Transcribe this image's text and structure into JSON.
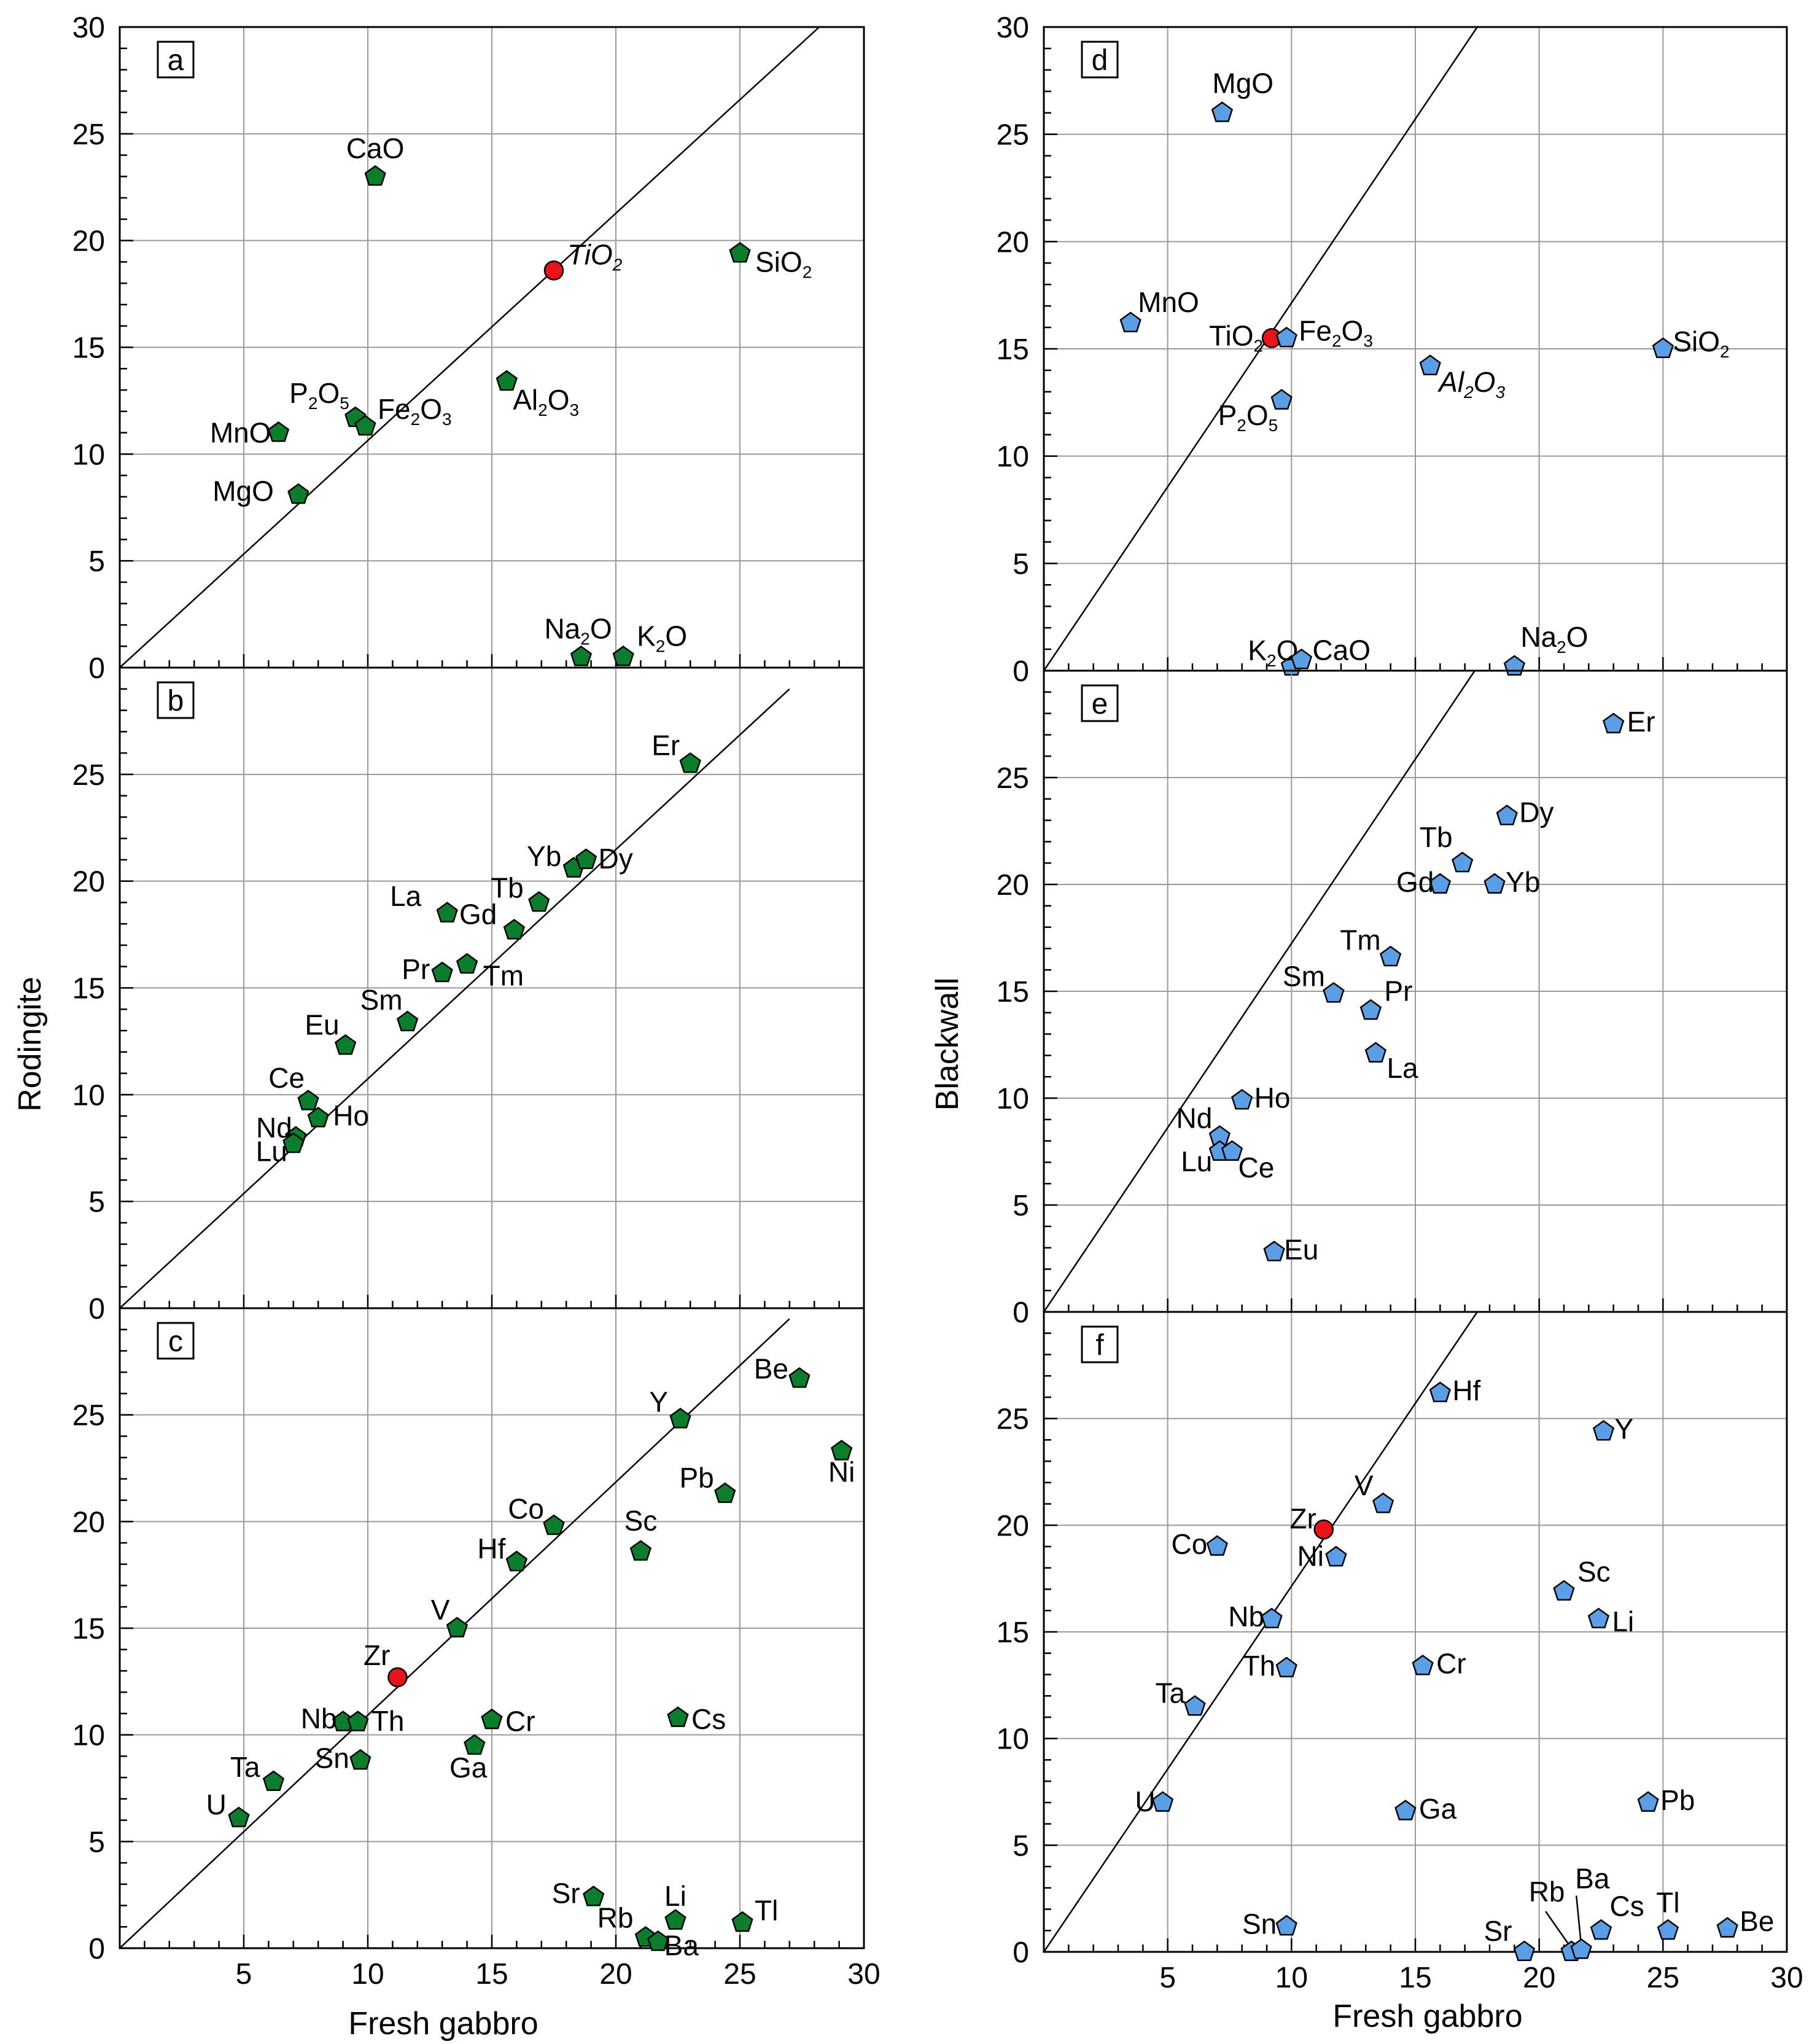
{
  "figure": {
    "x_axis_label": "Fresh gabbro",
    "left_y_label": "Rodingite",
    "right_y_label": "Blackwall"
  },
  "colors": {
    "rodingite_marker": "#0b7d2c",
    "blackwall_marker": "#5b9ee6",
    "highlight_marker": "#e8141b",
    "reference_line": "#000000",
    "grid": "#9a9a9a"
  },
  "chart_data": [
    {
      "id": "a",
      "type": "scatter",
      "label": "a",
      "xlim": [
        0,
        30
      ],
      "ylim": [
        0,
        30
      ],
      "x_ticks": [],
      "y_ticks": [
        "0",
        "5",
        "10",
        "15",
        "20",
        "25",
        "30"
      ],
      "series": "rodingite",
      "reference_line": [
        [
          0,
          0
        ],
        [
          28.2,
          30
        ]
      ],
      "points": [
        {
          "label": "CaO",
          "x": 10.3,
          "y": 23.0
        },
        {
          "label": "TiO",
          "sub": "2",
          "x": 17.5,
          "y": 18.6,
          "highlight": true,
          "italic": true
        },
        {
          "label": "SiO",
          "sub": "2",
          "x": 25.0,
          "y": 19.4
        },
        {
          "label": "P",
          "sub": "2",
          "tail": "O",
          "sub2": "5",
          "x": 9.5,
          "y": 11.7
        },
        {
          "label": "Fe",
          "sub": "2",
          "tail": "O",
          "sub2": "3",
          "x": 9.9,
          "y": 11.3
        },
        {
          "label": "Al",
          "sub": "2",
          "tail": "O",
          "sub2": "3",
          "x": 15.6,
          "y": 13.4
        },
        {
          "label": "MnO",
          "x": 6.4,
          "y": 11.0
        },
        {
          "label": "MgO",
          "x": 7.2,
          "y": 8.1
        },
        {
          "label": "Na",
          "sub": "2",
          "tail": "O",
          "x": 18.6,
          "y": 0.5
        },
        {
          "label": "K",
          "sub": "2",
          "tail": "O",
          "x": 20.3,
          "y": 0.5
        }
      ]
    },
    {
      "id": "b",
      "type": "scatter",
      "label": "b",
      "xlim": [
        0,
        30
      ],
      "ylim": [
        0,
        30
      ],
      "x_ticks": [],
      "y_ticks": [
        "0",
        "5",
        "10",
        "15",
        "20",
        "25"
      ],
      "series": "rodingite",
      "reference_line": [
        [
          0,
          0
        ],
        [
          27,
          29
        ]
      ],
      "points": [
        {
          "label": "Er",
          "x": 23.0,
          "y": 25.5
        },
        {
          "label": "Yb",
          "x": 18.3,
          "y": 20.6
        },
        {
          "label": "Dy",
          "x": 18.8,
          "y": 21.0
        },
        {
          "label": "La",
          "x": 13.2,
          "y": 18.5
        },
        {
          "label": "Tb",
          "x": 16.9,
          "y": 19.0
        },
        {
          "label": "Gd",
          "x": 15.9,
          "y": 17.7
        },
        {
          "label": "Pr",
          "x": 13.0,
          "y": 15.7
        },
        {
          "label": "Tm",
          "x": 14.0,
          "y": 16.1
        },
        {
          "label": "Sm",
          "x": 11.6,
          "y": 13.4
        },
        {
          "label": "Eu",
          "x": 9.1,
          "y": 12.3
        },
        {
          "label": "Ce",
          "x": 7.6,
          "y": 9.7
        },
        {
          "label": "Nd",
          "x": 7.1,
          "y": 8.0
        },
        {
          "label": "Ho",
          "x": 8.0,
          "y": 8.9
        },
        {
          "label": "Lu",
          "x": 7.0,
          "y": 7.7
        }
      ]
    },
    {
      "id": "c",
      "type": "scatter",
      "label": "c",
      "xlim": [
        0,
        30
      ],
      "ylim": [
        0,
        30
      ],
      "x_ticks": [
        "5",
        "10",
        "15",
        "20",
        "25",
        "30"
      ],
      "y_ticks": [
        "0",
        "5",
        "10",
        "15",
        "20",
        "25"
      ],
      "series": "rodingite",
      "reference_line": [
        [
          0,
          0
        ],
        [
          27,
          29.5
        ]
      ],
      "points": [
        {
          "label": "Be",
          "x": 27.4,
          "y": 26.7
        },
        {
          "label": "Y",
          "x": 22.6,
          "y": 24.8
        },
        {
          "label": "Ni",
          "x": 29.1,
          "y": 23.3
        },
        {
          "label": "Pb",
          "x": 24.4,
          "y": 21.3
        },
        {
          "label": "Co",
          "x": 17.5,
          "y": 19.8
        },
        {
          "label": "Sc",
          "x": 21.0,
          "y": 18.6
        },
        {
          "label": "Hf",
          "x": 16.0,
          "y": 18.1
        },
        {
          "label": "V",
          "x": 13.6,
          "y": 15.0
        },
        {
          "label": "Zr",
          "x": 11.2,
          "y": 12.7,
          "highlight": true
        },
        {
          "label": "Nb",
          "x": 9.0,
          "y": 10.6
        },
        {
          "label": "Th",
          "x": 9.6,
          "y": 10.6
        },
        {
          "label": "Cr",
          "x": 15.0,
          "y": 10.7
        },
        {
          "label": "Cs",
          "x": 22.5,
          "y": 10.8
        },
        {
          "label": "Ga",
          "x": 14.3,
          "y": 9.5
        },
        {
          "label": "Sn",
          "x": 9.7,
          "y": 8.8
        },
        {
          "label": "Ta",
          "x": 6.2,
          "y": 7.8
        },
        {
          "label": "U",
          "x": 4.8,
          "y": 6.1
        },
        {
          "label": "Sr",
          "x": 19.1,
          "y": 2.4
        },
        {
          "label": "Li",
          "x": 22.4,
          "y": 1.3
        },
        {
          "label": "Tl",
          "x": 25.1,
          "y": 1.2
        },
        {
          "label": "Rb",
          "x": 21.2,
          "y": 0.5
        },
        {
          "label": "Ba",
          "x": 21.7,
          "y": 0.3
        }
      ]
    },
    {
      "id": "d",
      "type": "scatter",
      "label": "d",
      "xlim": [
        0,
        30
      ],
      "ylim": [
        0,
        30
      ],
      "x_ticks": [],
      "y_ticks": [
        "0",
        "5",
        "10",
        "15",
        "20",
        "25",
        "30"
      ],
      "series": "blackwall",
      "reference_line": [
        [
          0,
          0
        ],
        [
          17.5,
          30
        ]
      ],
      "points": [
        {
          "label": "MgO",
          "x": 7.2,
          "y": 26.0
        },
        {
          "label": "MnO",
          "x": 3.5,
          "y": 16.2
        },
        {
          "label": "TiO",
          "sub": "2",
          "x": 9.2,
          "y": 15.5,
          "highlight": true
        },
        {
          "label": "Fe",
          "sub": "2",
          "tail": "O",
          "sub2": "3",
          "x": 9.8,
          "y": 15.5
        },
        {
          "label": "Al",
          "sub": "2",
          "tail": "O",
          "sub2": "3",
          "x": 15.6,
          "y": 14.2,
          "italic": true
        },
        {
          "label": "SiO",
          "sub": "2",
          "x": 25.0,
          "y": 15.0
        },
        {
          "label": "P",
          "sub": "2",
          "tail": "O",
          "sub2": "5",
          "x": 9.6,
          "y": 12.6
        },
        {
          "label": "K",
          "sub": "2",
          "tail": "O",
          "x": 10.0,
          "y": 0.2
        },
        {
          "label": "CaO",
          "x": 10.4,
          "y": 0.5
        },
        {
          "label": "Na",
          "sub": "2",
          "tail": "O",
          "x": 19.0,
          "y": 0.2
        }
      ]
    },
    {
      "id": "e",
      "type": "scatter",
      "label": "e",
      "xlim": [
        0,
        30
      ],
      "ylim": [
        0,
        30
      ],
      "x_ticks": [],
      "y_ticks": [
        "0",
        "5",
        "10",
        "15",
        "20",
        "25"
      ],
      "series": "blackwall",
      "reference_line": [
        [
          0,
          0
        ],
        [
          17.4,
          30
        ]
      ],
      "points": [
        {
          "label": "Er",
          "x": 23.0,
          "y": 27.5
        },
        {
          "label": "Dy",
          "x": 18.7,
          "y": 23.2
        },
        {
          "label": "Tb",
          "x": 16.9,
          "y": 21.0
        },
        {
          "label": "Gd",
          "x": 16.0,
          "y": 20.0
        },
        {
          "label": "Yb",
          "x": 18.2,
          "y": 20.0
        },
        {
          "label": "Tm",
          "x": 14.0,
          "y": 16.6
        },
        {
          "label": "Sm",
          "x": 11.7,
          "y": 14.9
        },
        {
          "label": "Pr",
          "x": 13.2,
          "y": 14.1
        },
        {
          "label": "La",
          "x": 13.4,
          "y": 12.1
        },
        {
          "label": "Ho",
          "x": 8.0,
          "y": 9.9
        },
        {
          "label": "Nd",
          "x": 7.1,
          "y": 8.2
        },
        {
          "label": "Lu",
          "x": 7.1,
          "y": 7.5
        },
        {
          "label": "Ce",
          "x": 7.6,
          "y": 7.5
        },
        {
          "label": "Eu",
          "x": 9.3,
          "y": 2.8
        }
      ]
    },
    {
      "id": "f",
      "type": "scatter",
      "label": "f",
      "xlim": [
        0,
        30
      ],
      "ylim": [
        0,
        30
      ],
      "x_ticks": [
        "5",
        "10",
        "15",
        "20",
        "25",
        "30"
      ],
      "y_ticks": [
        "0",
        "5",
        "10",
        "15",
        "20",
        "25"
      ],
      "series": "blackwall",
      "reference_line": [
        [
          0,
          0
        ],
        [
          17.5,
          30
        ]
      ],
      "points": [
        {
          "label": "Hf",
          "x": 16.0,
          "y": 26.2
        },
        {
          "label": "Y",
          "x": 22.6,
          "y": 24.4
        },
        {
          "label": "V",
          "x": 13.7,
          "y": 21.0
        },
        {
          "label": "Zr",
          "x": 11.3,
          "y": 19.8,
          "highlight": true
        },
        {
          "label": "Co",
          "x": 7.0,
          "y": 19.0
        },
        {
          "label": "Ni",
          "x": 11.8,
          "y": 18.5
        },
        {
          "label": "Sc",
          "x": 21.0,
          "y": 16.9
        },
        {
          "label": "Li",
          "x": 22.4,
          "y": 15.6
        },
        {
          "label": "Nb",
          "x": 9.2,
          "y": 15.6
        },
        {
          "label": "Th",
          "x": 9.8,
          "y": 13.3
        },
        {
          "label": "Cr",
          "x": 15.3,
          "y": 13.4
        },
        {
          "label": "Ta",
          "x": 6.1,
          "y": 11.5
        },
        {
          "label": "Pb",
          "x": 24.4,
          "y": 7.0
        },
        {
          "label": "U",
          "x": 4.8,
          "y": 7.0
        },
        {
          "label": "Ga",
          "x": 14.6,
          "y": 6.6
        },
        {
          "label": "Sn",
          "x": 9.8,
          "y": 1.2
        },
        {
          "label": "Be",
          "x": 27.6,
          "y": 1.1
        },
        {
          "label": "Tl",
          "x": 25.2,
          "y": 1.0
        },
        {
          "label": "Cs",
          "x": 22.5,
          "y": 1.0
        },
        {
          "label": "Rb",
          "x": 21.3,
          "y": 0.0
        },
        {
          "label": "Ba",
          "x": 21.7,
          "y": 0.1
        },
        {
          "label": "Sr",
          "x": 19.4,
          "y": 0.0
        }
      ]
    }
  ]
}
